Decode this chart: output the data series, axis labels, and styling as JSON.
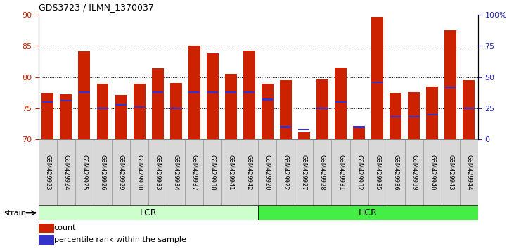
{
  "title": "GDS3723 / ILMN_1370037",
  "samples": [
    "GSM429923",
    "GSM429924",
    "GSM429925",
    "GSM429926",
    "GSM429929",
    "GSM429930",
    "GSM429933",
    "GSM429934",
    "GSM429937",
    "GSM429938",
    "GSM429941",
    "GSM429942",
    "GSM429920",
    "GSM429922",
    "GSM429927",
    "GSM429928",
    "GSM429931",
    "GSM429932",
    "GSM429935",
    "GSM429936",
    "GSM429939",
    "GSM429940",
    "GSM429943",
    "GSM429944"
  ],
  "counts": [
    77.5,
    77.3,
    84.1,
    79.0,
    77.1,
    78.9,
    81.4,
    79.1,
    85.1,
    83.8,
    80.5,
    84.3,
    79.0,
    79.5,
    71.2,
    79.6,
    81.6,
    72.2,
    89.7,
    77.5,
    77.6,
    78.5,
    87.5,
    79.5
  ],
  "percentile_ranks": [
    30,
    31,
    38,
    25,
    28,
    26,
    38,
    25,
    38,
    38,
    38,
    38,
    32,
    10,
    8,
    25,
    30,
    10,
    46,
    18,
    18,
    20,
    42,
    25
  ],
  "lcr_count": 12,
  "hcr_count": 12,
  "ylim": [
    70,
    90
  ],
  "y2lim": [
    0,
    100
  ],
  "yticks": [
    70,
    75,
    80,
    85,
    90
  ],
  "y2ticks": [
    0,
    25,
    50,
    75,
    100
  ],
  "y2ticklabels": [
    "0",
    "25",
    "50",
    "75",
    "100%"
  ],
  "bar_color": "#cc2200",
  "marker_color": "#3333cc",
  "grid_color": "#000000",
  "background_color": "#ffffff",
  "tick_label_color_left": "#cc2200",
  "tick_label_color_right": "#2222bb",
  "group_lcr_color": "#ccffcc",
  "group_hcr_color": "#44ee44",
  "bar_width": 0.65,
  "legend_count_label": "count",
  "legend_percentile_label": "percentile rank within the sample",
  "strain_label": "strain"
}
